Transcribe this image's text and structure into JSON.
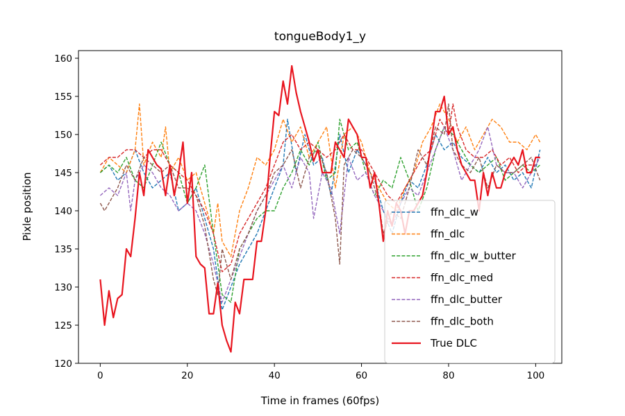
{
  "chart_data": {
    "type": "line",
    "title": "tongueBody1_y",
    "xlabel": "Time in frames (60fps)",
    "ylabel": "Pixle position",
    "xlim": [
      -5,
      106
    ],
    "ylim": [
      120,
      161
    ],
    "xticks": [
      0,
      20,
      40,
      60,
      80,
      100
    ],
    "yticks": [
      120,
      125,
      130,
      135,
      140,
      145,
      150,
      155,
      160
    ],
    "grid": false,
    "legend_position": "lower-right",
    "series": [
      {
        "name": "ffn_dlc_w",
        "color": "#1f77b4",
        "style": "dashed",
        "x": [
          0,
          2,
          4,
          6,
          8,
          10,
          12,
          14,
          16,
          18,
          20,
          22,
          24,
          26,
          28,
          30,
          32,
          34,
          36,
          38,
          40,
          42,
          43,
          45,
          47,
          49,
          51,
          53,
          55,
          57,
          59,
          61,
          63,
          65,
          67,
          69,
          71,
          73,
          75,
          77,
          79,
          81,
          83,
          85,
          87,
          89,
          91,
          93,
          95,
          97,
          99,
          101
        ],
        "values": [
          145,
          146,
          144,
          145,
          148,
          145,
          143,
          144,
          145,
          140,
          141,
          143,
          139,
          135,
          127,
          130,
          133,
          135,
          137,
          140,
          143,
          146,
          152,
          145,
          150,
          146,
          147,
          142,
          150,
          145,
          148,
          146,
          144,
          140,
          137,
          141,
          144,
          143,
          146,
          150,
          148,
          149,
          147,
          146,
          145,
          147,
          145,
          146,
          144,
          145,
          143,
          148
        ]
      },
      {
        "name": "ffn_dlc",
        "color": "#ff7f0e",
        "style": "dashed",
        "x": [
          0,
          2,
          4,
          6,
          8,
          9,
          10,
          12,
          14,
          15,
          16,
          18,
          20,
          22,
          24,
          26,
          27,
          28,
          30,
          32,
          34,
          36,
          38,
          40,
          42,
          44,
          46,
          48,
          50,
          52,
          54,
          56,
          58,
          60,
          62,
          64,
          66,
          68,
          70,
          72,
          74,
          76,
          78,
          80,
          82,
          84,
          86,
          88,
          90,
          92,
          94,
          96,
          98,
          100,
          101
        ],
        "values": [
          145,
          147,
          146,
          145,
          148,
          154,
          146,
          149,
          147,
          151,
          145,
          147,
          144,
          145,
          141,
          137,
          141,
          136,
          134,
          140,
          143,
          147,
          146,
          148,
          152,
          149,
          151,
          147,
          149,
          151,
          143,
          150,
          151,
          149,
          145,
          143,
          141,
          140,
          143,
          145,
          149,
          151,
          154,
          152,
          149,
          151,
          148,
          150,
          152,
          151,
          149,
          149,
          148,
          150,
          149
        ]
      },
      {
        "name": "ffn_dlc_w_butter",
        "color": "#2ca02c",
        "style": "dashed",
        "x": [
          0,
          2,
          4,
          6,
          8,
          10,
          12,
          14,
          16,
          18,
          20,
          22,
          24,
          26,
          28,
          30,
          32,
          34,
          36,
          38,
          40,
          42,
          44,
          46,
          48,
          50,
          52,
          54,
          55,
          57,
          59,
          61,
          63,
          65,
          67,
          69,
          71,
          73,
          75,
          77,
          79,
          81,
          83,
          85,
          87,
          89,
          91,
          93,
          95,
          97,
          99,
          101
        ],
        "values": [
          145,
          146,
          145,
          147,
          144,
          143,
          146,
          149,
          146,
          145,
          141,
          143,
          146,
          137,
          129,
          128,
          135,
          137,
          139,
          140,
          140,
          143,
          145,
          148,
          146,
          149,
          144,
          145,
          152,
          148,
          149,
          145,
          142,
          144,
          143,
          147,
          144,
          140,
          143,
          148,
          151,
          150,
          148,
          146,
          145,
          146,
          147,
          144,
          145,
          146,
          145,
          146
        ]
      },
      {
        "name": "ffn_dlc_med",
        "color": "#d62728",
        "style": "dashed",
        "x": [
          0,
          2,
          4,
          6,
          8,
          10,
          12,
          14,
          16,
          18,
          20,
          22,
          24,
          26,
          28,
          30,
          32,
          34,
          36,
          38,
          40,
          42,
          44,
          46,
          48,
          50,
          52,
          54,
          56,
          58,
          60,
          62,
          64,
          66,
          68,
          70,
          72,
          74,
          76,
          78,
          80,
          81,
          82,
          84,
          86,
          88,
          90,
          92,
          94,
          96,
          98,
          100,
          101
        ],
        "values": [
          146,
          147,
          147,
          148,
          148,
          147,
          148,
          148,
          146,
          145,
          144,
          142,
          140,
          137,
          132,
          133,
          137,
          139,
          141,
          143,
          146,
          149,
          150,
          148,
          149,
          148,
          147,
          148,
          150,
          148,
          148,
          146,
          144,
          142,
          141,
          143,
          145,
          147,
          148,
          152,
          150,
          154,
          151,
          148,
          147,
          147,
          148,
          146,
          147,
          145,
          146,
          146,
          147
        ]
      },
      {
        "name": "ffn_dlc_butter",
        "color": "#9467bd",
        "style": "dashed",
        "x": [
          0,
          2,
          4,
          6,
          7,
          8,
          10,
          12,
          14,
          16,
          18,
          20,
          22,
          24,
          26,
          28,
          30,
          32,
          34,
          36,
          38,
          40,
          42,
          44,
          46,
          48,
          49,
          51,
          53,
          55,
          57,
          59,
          61,
          63,
          65,
          67,
          69,
          71,
          73,
          75,
          77,
          79,
          81,
          83,
          85,
          87,
          89,
          91,
          93,
          95,
          97,
          99,
          101
        ],
        "values": [
          142,
          143,
          142,
          145,
          140,
          144,
          146,
          145,
          143,
          142,
          140,
          141,
          140,
          137,
          133,
          128,
          131,
          134,
          137,
          140,
          142,
          144,
          146,
          143,
          147,
          145,
          139,
          145,
          143,
          137,
          147,
          144,
          145,
          142,
          140,
          138,
          141,
          143,
          142,
          145,
          148,
          151,
          148,
          144,
          146,
          148,
          151,
          146,
          145,
          145,
          143,
          145,
          147
        ]
      },
      {
        "name": "ffn_dlc_both",
        "color": "#8c564b",
        "style": "dashed",
        "x": [
          0,
          1,
          2,
          4,
          6,
          8,
          10,
          12,
          14,
          16,
          18,
          20,
          22,
          24,
          26,
          27,
          28,
          30,
          32,
          34,
          36,
          38,
          40,
          42,
          44,
          46,
          48,
          50,
          52,
          54,
          55,
          56,
          58,
          60,
          62,
          64,
          65,
          67,
          69,
          71,
          73,
          75,
          77,
          79,
          80,
          81,
          83,
          85,
          87,
          89,
          91,
          93,
          95,
          97,
          99,
          101
        ],
        "values": [
          141,
          140,
          141,
          143,
          146,
          144,
          147,
          146,
          145,
          146,
          143,
          143,
          142,
          138,
          131,
          129,
          135,
          131,
          135,
          137,
          140,
          142,
          145,
          146,
          148,
          143,
          147,
          148,
          145,
          139,
          133,
          146,
          148,
          147,
          145,
          141,
          137,
          140,
          139,
          143,
          148,
          146,
          151,
          150,
          154,
          148,
          146,
          145,
          147,
          143,
          146,
          145,
          145,
          146,
          147,
          144
        ]
      },
      {
        "name": "True DLC",
        "color": "#e8141e",
        "style": "solid",
        "x": [
          0,
          1,
          2,
          3,
          4,
          5,
          6,
          7,
          8,
          9,
          10,
          11,
          12,
          13,
          14,
          15,
          16,
          17,
          18,
          19,
          20,
          21,
          22,
          23,
          24,
          25,
          26,
          27,
          28,
          29,
          30,
          31,
          32,
          33,
          34,
          35,
          36,
          37,
          38,
          39,
          40,
          41,
          42,
          43,
          44,
          45,
          46,
          47,
          48,
          49,
          50,
          51,
          52,
          53,
          54,
          55,
          56,
          57,
          58,
          59,
          60,
          61,
          62,
          63,
          64,
          65,
          66,
          67,
          68,
          69,
          70,
          71,
          72,
          73,
          74,
          75,
          76,
          77,
          78,
          79,
          80,
          81,
          82,
          83,
          84,
          85,
          86,
          87,
          88,
          89,
          90,
          91,
          92,
          93,
          94,
          95,
          96,
          97,
          98,
          99,
          100,
          101
        ],
        "values": [
          131,
          125,
          129.5,
          126,
          128.5,
          129,
          135,
          134,
          139,
          145,
          142,
          148,
          147,
          146,
          145.5,
          142,
          146,
          142,
          145,
          149,
          141,
          145,
          134,
          133,
          132.5,
          126.5,
          126.5,
          130.5,
          125,
          123,
          121.5,
          128,
          126.5,
          131,
          131,
          131,
          136,
          136,
          140,
          147,
          153,
          152.5,
          157,
          154,
          159,
          155.5,
          153,
          151,
          149,
          146.5,
          148,
          145,
          145,
          145,
          149,
          148,
          147,
          152,
          151,
          150,
          147,
          147,
          143,
          145,
          141,
          136,
          140,
          138,
          141,
          140,
          137,
          140,
          140,
          141,
          142,
          145,
          149,
          153,
          153,
          155,
          150,
          151,
          148,
          146,
          145,
          144,
          144,
          140,
          145,
          142,
          145,
          143,
          143,
          145,
          146,
          147,
          146,
          148,
          145,
          145,
          147,
          147
        ]
      }
    ]
  }
}
